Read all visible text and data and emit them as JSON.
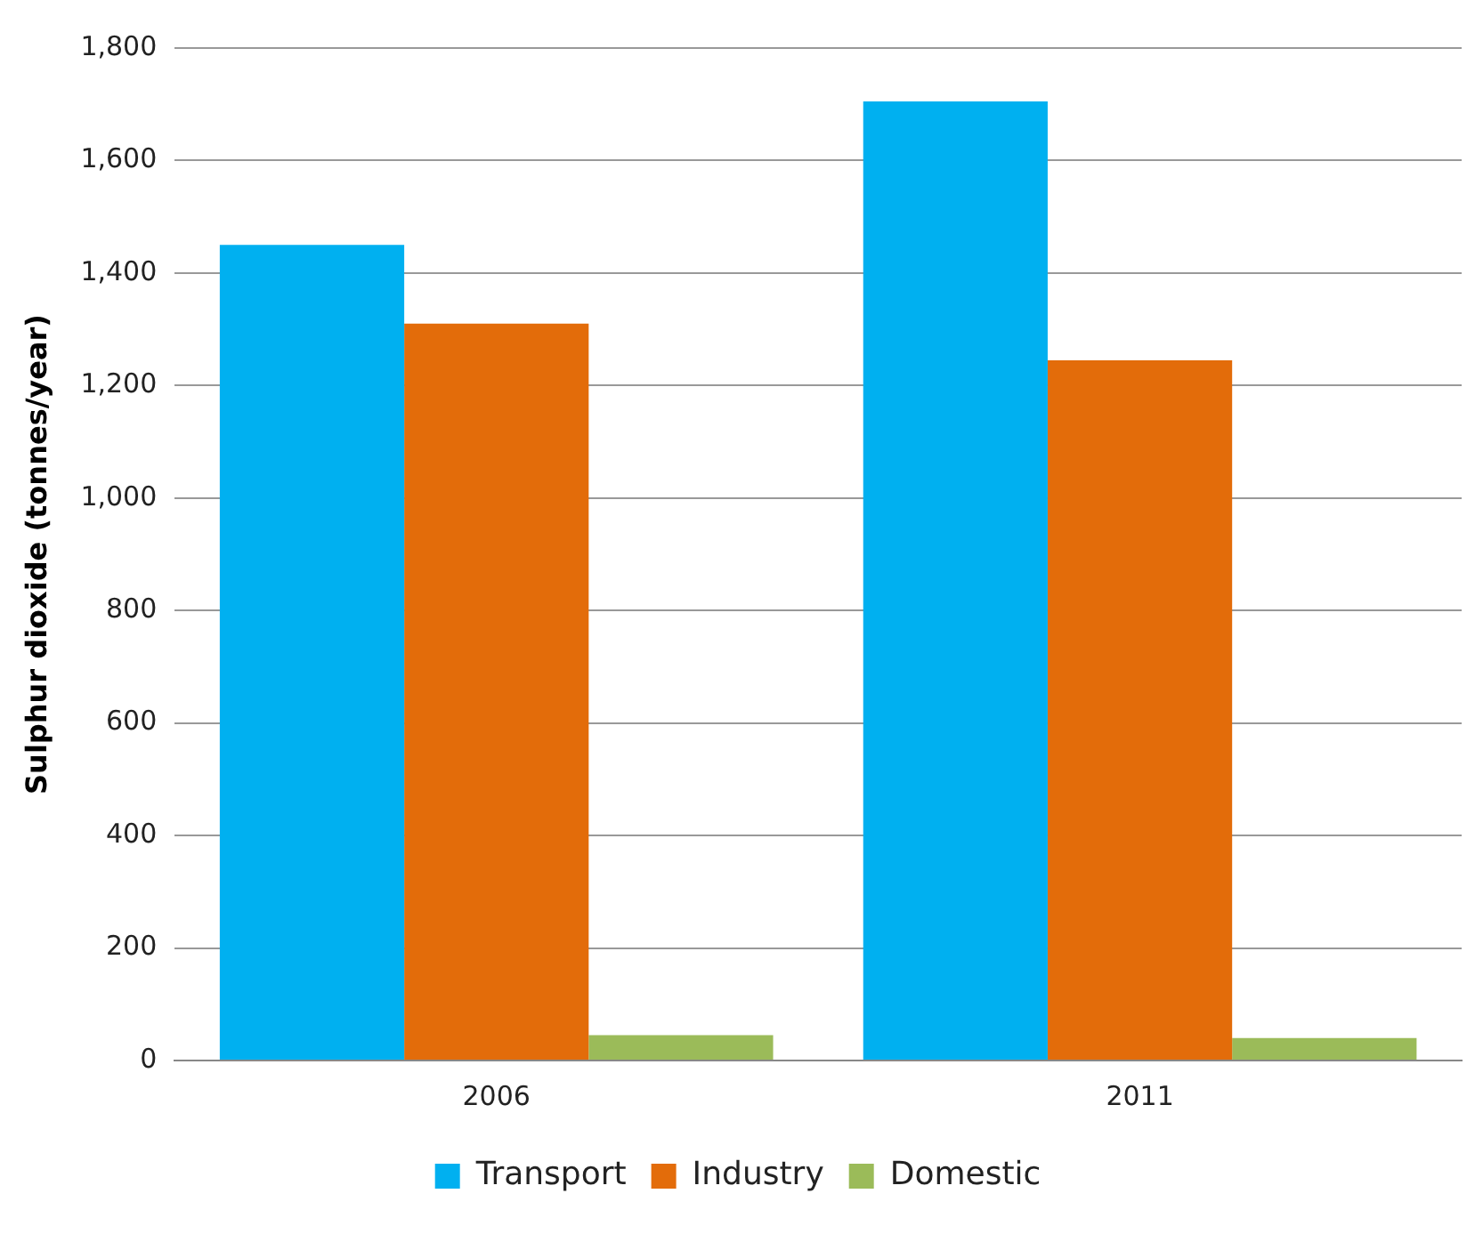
{
  "chart_data": {
    "type": "bar",
    "ylabel": "Sulphur dioxide (tonnes/year)",
    "categories": [
      "2006",
      "2011"
    ],
    "series": [
      {
        "name": "Transport",
        "color": "#00b0f0",
        "values": [
          1450,
          1705
        ]
      },
      {
        "name": "Industry",
        "color": "#e36c0a",
        "values": [
          1310,
          1245
        ]
      },
      {
        "name": "Domestic",
        "color": "#9bbb59",
        "values": [
          45,
          40
        ]
      }
    ],
    "ylim": [
      0,
      1800
    ],
    "yticks": [
      0,
      200,
      400,
      600,
      800,
      {
        "value": 1000,
        "label": "1,000"
      },
      {
        "value": 1200,
        "label": "1,200"
      },
      {
        "value": 1400,
        "label": "1,400"
      },
      {
        "value": 1600,
        "label": "1,600"
      },
      {
        "value": 1800,
        "label": "1,800"
      }
    ],
    "grid": "y",
    "legend": "bottom"
  }
}
